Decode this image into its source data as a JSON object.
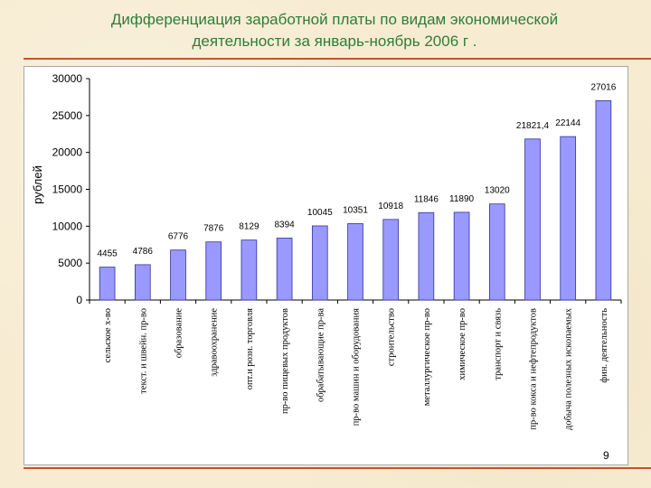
{
  "slide": {
    "title_line1": "Дифференциация заработной платы по видам экономической",
    "title_line2": "деятельности за январь-ноябрь 2006 г .",
    "page_number": "9"
  },
  "colors": {
    "bar_fill": "#9999ff",
    "bar_stroke": "#333399",
    "title": "#2f7d3a",
    "rule": "#c8502f"
  },
  "chart_data": {
    "type": "bar",
    "title": "",
    "xlabel": "",
    "ylabel": "рублей",
    "ylim": [
      0,
      30000
    ],
    "yticks": [
      0,
      5000,
      10000,
      15000,
      20000,
      25000,
      30000
    ],
    "grid": false,
    "legend": false,
    "categories": [
      "сельское х-во",
      "текст. и швейн. пр-во",
      "образование",
      "здравоохранение",
      "опт.и розн. торговля",
      "пр-во пищевых продуктов",
      "обрабатывающие пр-ва",
      "пр-во машин и оборудования",
      "строительство",
      "металлургическое пр-во",
      "химическое пр-во",
      "транспорт и связь",
      "пр-во кокса и нефтепродуктов",
      "добыча полезных ископаемых",
      "фин. деятельность"
    ],
    "values": [
      4455,
      4786,
      6776,
      7876,
      8129,
      8394,
      10045,
      10351,
      10918,
      11846,
      11890,
      13020,
      21821.4,
      22144,
      27016
    ],
    "value_labels": [
      "4455",
      "4786",
      "6776",
      "7876",
      "8129",
      "8394",
      "10045",
      "10351",
      "10918",
      "11846",
      "11890",
      "13020",
      "21821,4",
      "22144",
      "27016"
    ]
  }
}
